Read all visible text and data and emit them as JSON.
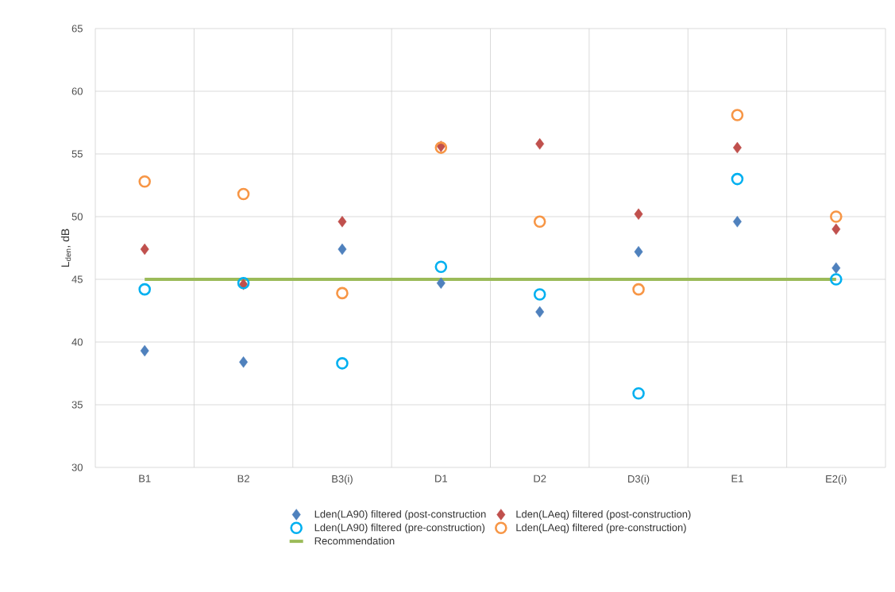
{
  "chart_data": {
    "type": "scatter",
    "ylabel": "L$_{den}$, dB",
    "categories": [
      "B1",
      "B2",
      "B3(i)",
      "D1",
      "D2",
      "D3(i)",
      "E1",
      "E2(i)"
    ],
    "ylim": [
      30,
      65
    ],
    "yticks": [
      30,
      35,
      40,
      45,
      50,
      55,
      60,
      65
    ],
    "grid": true,
    "legend": "bottom",
    "series": [
      {
        "name": "Lden(LA90) filtered (post-construction",
        "color": "#4f81bd",
        "marker": "diamond",
        "values": [
          39.3,
          38.4,
          47.4,
          44.7,
          42.4,
          47.2,
          49.6,
          45.9
        ]
      },
      {
        "name": "Lden(LAeq) filtered (post-construction)",
        "color": "#c0504d",
        "marker": "diamond",
        "values": [
          47.4,
          44.6,
          49.6,
          55.6,
          55.8,
          50.2,
          55.5,
          49.0
        ]
      },
      {
        "name": "Lden(LA90) filtered (pre-construction)",
        "color": "#00b0f0",
        "marker": "circle",
        "values": [
          44.2,
          44.7,
          38.3,
          46.0,
          43.8,
          35.9,
          53.0,
          45.0
        ]
      },
      {
        "name": "Lden(LAeq) filtered (pre-construction)",
        "color": "#f79646",
        "marker": "circle",
        "values": [
          52.8,
          51.8,
          43.9,
          55.5,
          49.6,
          44.2,
          58.1,
          50.0
        ]
      },
      {
        "name": "Recommendation",
        "color": "#9bbb59",
        "type": "line",
        "marker": "none",
        "values": [
          45,
          45,
          45,
          45,
          45,
          45,
          45,
          45
        ]
      }
    ]
  }
}
